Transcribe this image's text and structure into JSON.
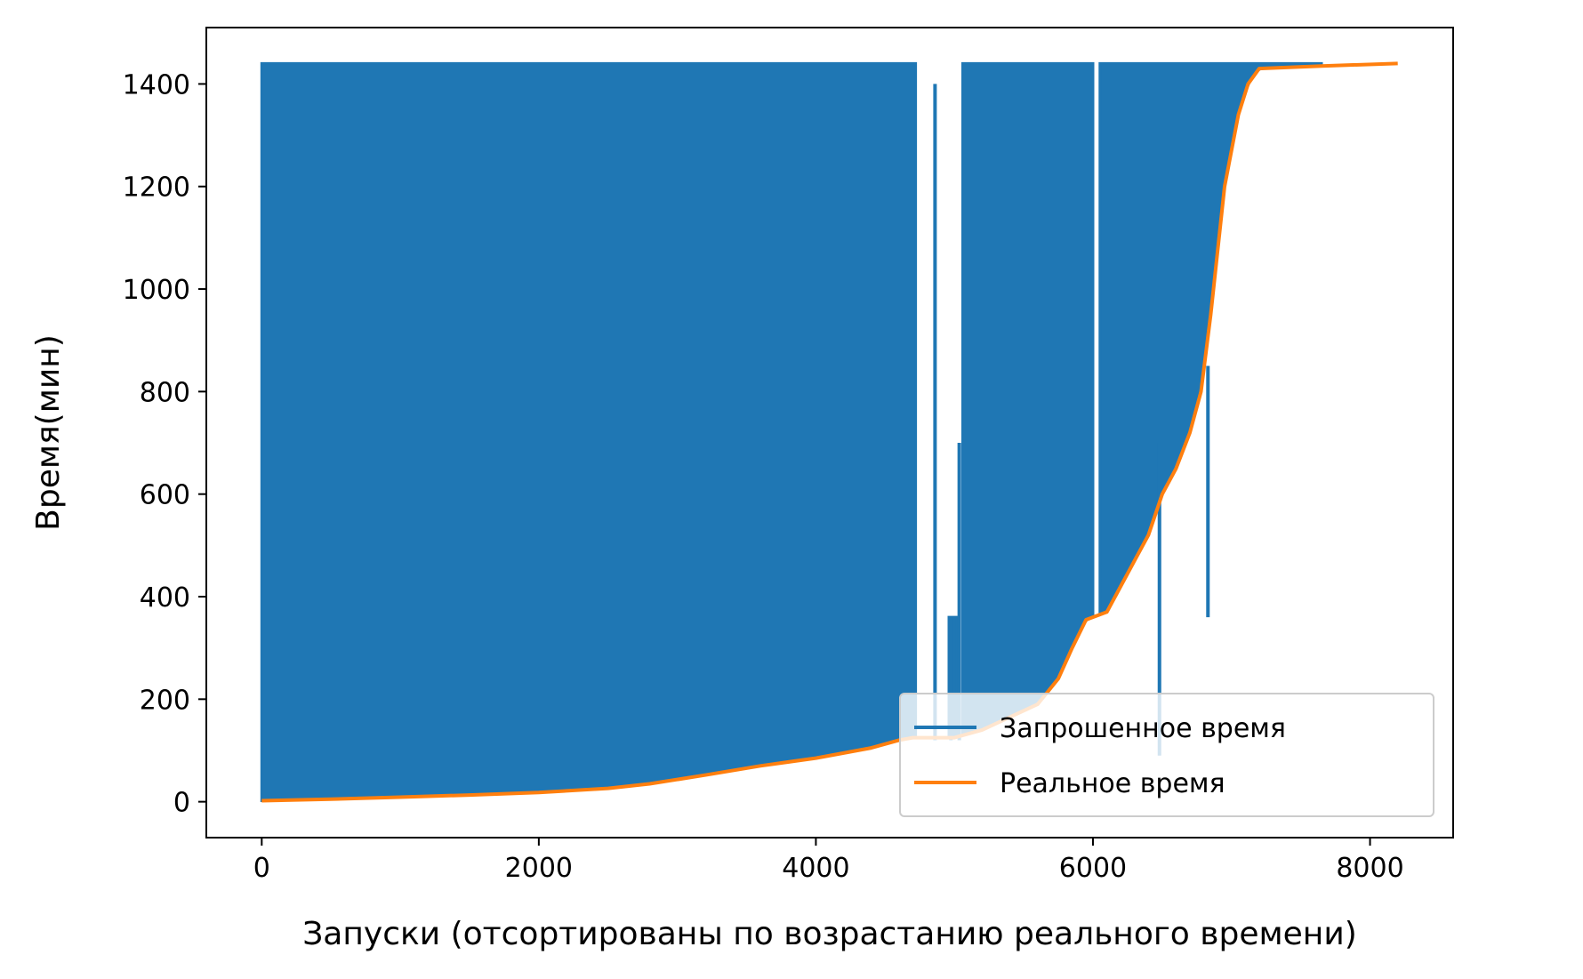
{
  "chart_data": {
    "type": "line",
    "xlabel": "Запуски (отсортированы по возрастанию реального времени)",
    "ylabel": "Время(мин)",
    "xlim": [
      -400,
      8600
    ],
    "ylim": [
      -70,
      1510
    ],
    "x_ticks": [
      0,
      2000,
      4000,
      6000,
      8000
    ],
    "x_tick_labels": [
      "0",
      "2000",
      "4000",
      "6000",
      "8000"
    ],
    "y_ticks": [
      0,
      200,
      400,
      600,
      800,
      1000,
      1200,
      1400
    ],
    "y_tick_labels": [
      "0",
      "200",
      "400",
      "600",
      "800",
      "1000",
      "1200",
      "1400"
    ],
    "grid": false,
    "legend_position": "lower right",
    "colors": {
      "requested": "#1f77b4",
      "actual": "#ff7f0e"
    },
    "series": [
      {
        "name": "Запрошенное время",
        "color": "#1f77b4",
        "description_ref": "per-run requested time, oscillating between actual time and 1440 min",
        "band_segments": [
          {
            "x": [
              0,
              4720
            ],
            "min": "actual",
            "max": 1440
          },
          {
            "x": [
              4960,
              5020
            ],
            "min": "actual",
            "max": 360
          },
          {
            "x": [
              5060,
              6000
            ],
            "min": "actual",
            "max": 1440
          },
          {
            "x": [
              6050,
              7650
            ],
            "min": "actual",
            "max": 1440
          }
        ],
        "spikes": [
          {
            "x": 4860,
            "low": 120,
            "high": 1400
          },
          {
            "x": 4975,
            "low": 120,
            "high": 360
          },
          {
            "x": 5035,
            "low": 120,
            "high": 700
          },
          {
            "x": 6480,
            "low": 90,
            "high": 700
          },
          {
            "x": 6830,
            "low": 360,
            "high": 850
          }
        ]
      },
      {
        "name": "Реальное время",
        "color": "#ff7f0e",
        "x": [
          0,
          500,
          1000,
          1500,
          2000,
          2500,
          2800,
          3200,
          3600,
          4000,
          4400,
          4600,
          4700,
          5000,
          5200,
          5600,
          5750,
          5850,
          5950,
          6100,
          6200,
          6300,
          6400,
          6500,
          6600,
          6700,
          6780,
          6850,
          6950,
          7050,
          7120,
          7200,
          7650,
          8200
        ],
        "y": [
          2,
          5,
          9,
          13,
          18,
          26,
          35,
          52,
          70,
          85,
          105,
          120,
          125,
          125,
          140,
          190,
          240,
          300,
          355,
          370,
          420,
          470,
          520,
          600,
          650,
          720,
          800,
          950,
          1200,
          1340,
          1400,
          1430,
          1435,
          1440
        ]
      }
    ]
  }
}
